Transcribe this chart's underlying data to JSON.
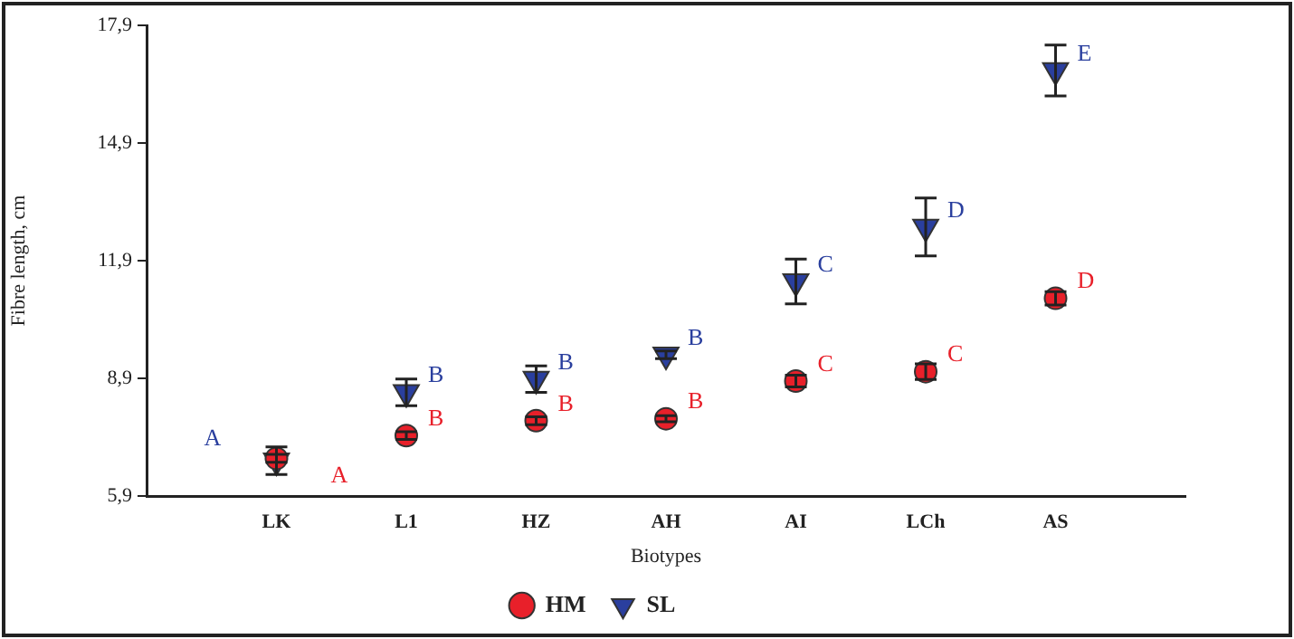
{
  "chart_data": {
    "type": "scatter",
    "xlabel": "Biotypes",
    "ylabel": "Fibre length, cm",
    "categories": [
      "LK",
      "L1",
      "HZ",
      "AH",
      "AI",
      "LCh",
      "AS"
    ],
    "series": [
      {
        "name": "HM",
        "color": "#e8202a",
        "marker": "circle",
        "values": [
          6.86,
          7.44,
          7.82,
          7.87,
          8.83,
          9.07,
          10.94
        ],
        "errors": [
          0.1,
          0.1,
          0.1,
          0.08,
          0.15,
          0.2,
          0.17
        ],
        "value_labels": [
          "A",
          "B",
          "B",
          "B",
          "C",
          "C",
          "D"
        ]
      },
      {
        "name": "SL",
        "color": "#2a3f9e",
        "marker": "triangle",
        "values": [
          6.8,
          8.54,
          8.88,
          9.5,
          11.37,
          12.76,
          16.75
        ],
        "errors": [
          0.35,
          0.34,
          0.34,
          0.1,
          0.57,
          0.74,
          0.65
        ],
        "value_labels": [
          "A",
          "B",
          "B",
          "B",
          "C",
          "D",
          "E"
        ]
      }
    ],
    "ylim": [
      5.9,
      17.9
    ],
    "yticks": [
      {
        "value": 5.9,
        "label": "5,9"
      },
      {
        "value": 8.9,
        "label": "8,9"
      },
      {
        "value": 11.9,
        "label": "11,9"
      },
      {
        "value": 14.9,
        "label": "14,9"
      },
      {
        "value": 17.9,
        "label": "17,9"
      }
    ],
    "grid": false,
    "legend": "bottom"
  }
}
